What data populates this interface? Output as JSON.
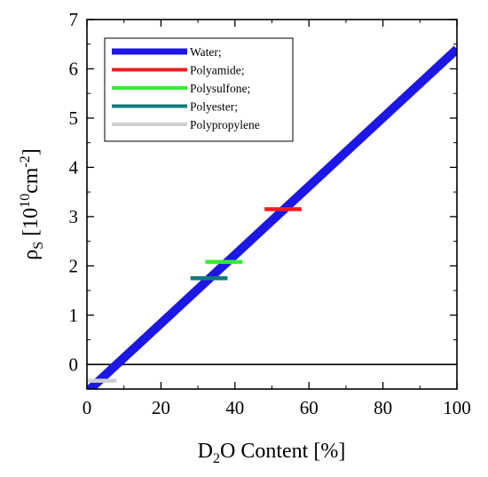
{
  "chart_data": {
    "type": "line",
    "xlabel": {
      "prefix": "D",
      "sub": "2",
      "suffix": "O Content [%]"
    },
    "ylabel": {
      "main": "ρ",
      "sub": "S",
      "open": " [10",
      "sup1": "10",
      "mid": "cm",
      "sup2": "-2",
      "close": "]"
    },
    "xlim": [
      0,
      100
    ],
    "ylim": [
      -0.5,
      7
    ],
    "xticks": [
      0,
      20,
      40,
      60,
      80,
      100
    ],
    "yticks": [
      0,
      1,
      2,
      3,
      4,
      5,
      6,
      7
    ],
    "reference_line": {
      "y": 0,
      "color": "#000000"
    },
    "series": [
      {
        "name": "Water;",
        "color": "#1c17e6",
        "kind": "line",
        "x": [
          0,
          100
        ],
        "y": [
          -0.56,
          6.4
        ]
      },
      {
        "name": "Polyamide;",
        "color": "#ff1a1a",
        "kind": "segment",
        "x": [
          48,
          58
        ],
        "y": [
          3.15,
          3.15
        ]
      },
      {
        "name": "Polysulfone;",
        "color": "#33ee33",
        "kind": "segment",
        "x": [
          32,
          42
        ],
        "y": [
          2.08,
          2.08
        ]
      },
      {
        "name": "Polyester;",
        "color": "#0e7a7a",
        "kind": "segment",
        "x": [
          28,
          38
        ],
        "y": [
          1.75,
          1.75
        ]
      },
      {
        "name": "Polypropylene",
        "color": "#cfcfcf",
        "kind": "segment",
        "x": [
          0,
          8
        ],
        "y": [
          -0.33,
          -0.33
        ]
      }
    ],
    "legend_position": "top-left"
  }
}
